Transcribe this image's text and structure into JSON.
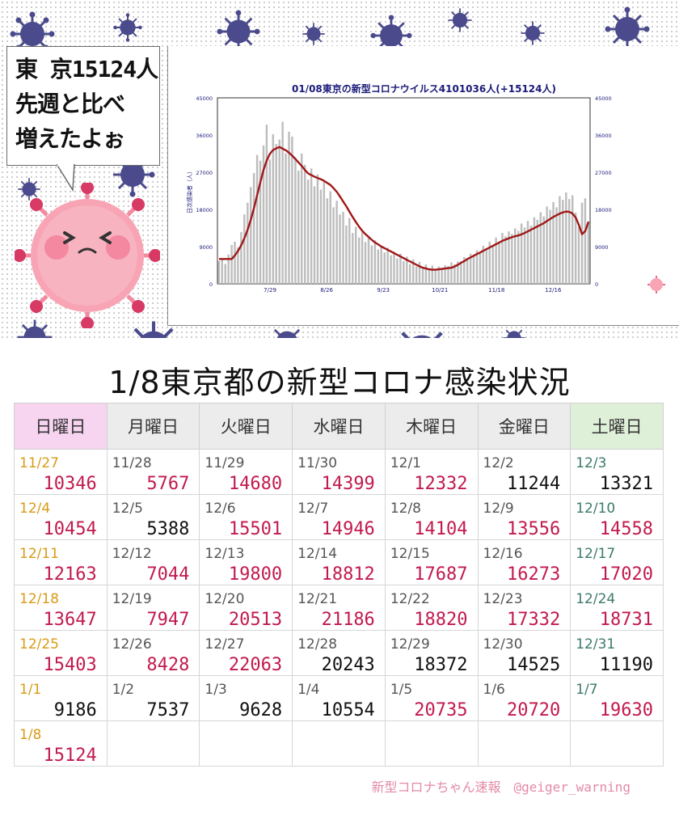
{
  "bubble": {
    "line1": "東 京15124人",
    "line2": "先週と比べ",
    "line3": "増えたよぉ"
  },
  "chart_data": {
    "type": "bar",
    "title": "01/08東京の新型コロナウイルス4101036人(+15124人)",
    "ylabel": "日次感染者（人）",
    "ylim": [
      0,
      45000
    ],
    "yticks": [
      "0",
      "9000",
      "18000",
      "27000",
      "36000",
      "45000"
    ],
    "xticks": [
      "7/29",
      "8/26",
      "9/23",
      "10/21",
      "11/18",
      "12/16"
    ],
    "series": [
      {
        "values": [
          5500,
          6200,
          4800,
          7100,
          9400,
          10200,
          8800,
          12500,
          16800,
          19600,
          23400,
          26800,
          31200,
          29800,
          33500,
          38500,
          30100,
          36200,
          33800,
          34900,
          39200,
          31600,
          36800,
          35600,
          30200,
          27400,
          31500,
          28800,
          25200,
          27900,
          23600,
          26500,
          22800,
          24900,
          20700,
          22400,
          18500,
          20100,
          16800,
          17400,
          14100,
          15900,
          12300,
          13800,
          11200,
          12600,
          10100,
          11400,
          9300,
          10500,
          8300,
          9200,
          7600,
          8700,
          6900,
          7800,
          6100,
          7300,
          5500,
          6600,
          4800,
          5900,
          4200,
          5300,
          3700,
          4700,
          3500,
          4400,
          3300,
          4200,
          3900,
          4500,
          4300,
          5200,
          4700,
          5400,
          5400,
          6500,
          5900,
          7300,
          6700,
          8100,
          7400,
          9200,
          8600,
          10200,
          9400,
          11200,
          10200,
          12300,
          11500,
          12700,
          12100,
          13400,
          12800,
          14600,
          13600,
          15200,
          14100,
          16100,
          15500,
          17300,
          16300,
          18700,
          17900,
          19800,
          18500,
          21200,
          20300,
          22100,
          20500,
          21400,
          17200,
          13800,
          19600,
          20700,
          15124
        ]
      },
      {
        "name": "7-day average",
        "values": [
          6000,
          6000,
          6000,
          6000,
          6000,
          6900,
          8000,
          9400,
          11100,
          13100,
          15600,
          18400,
          21600,
          24700,
          27600,
          29900,
          31500,
          32400,
          32800,
          33100,
          32700,
          32300,
          31700,
          31000,
          30200,
          29300,
          28500,
          27500,
          26700,
          26300,
          25900,
          25600,
          25300,
          24900,
          24400,
          23900,
          23100,
          22200,
          21100,
          19900,
          18700,
          17400,
          16100,
          14900,
          13800,
          12800,
          12000,
          11300,
          10600,
          10000,
          9500,
          9000,
          8600,
          8200,
          7800,
          7400,
          7000,
          6600,
          6200,
          5800,
          5400,
          5000,
          4600,
          4200,
          3900,
          3700,
          3500,
          3400,
          3400,
          3500,
          3600,
          3700,
          3800,
          3900,
          4200,
          4600,
          5100,
          5500,
          6000,
          6400,
          6800,
          7200,
          7600,
          8000,
          8400,
          8800,
          9200,
          9600,
          10000,
          10400,
          10700,
          11000,
          11300,
          11500,
          11700,
          12000,
          12300,
          12700,
          13100,
          13500,
          13900,
          14300,
          14700,
          15200,
          15700,
          16200,
          16600,
          17000,
          17300,
          17500,
          17400,
          17000,
          16000,
          14200,
          12000,
          12800,
          15000
        ]
      }
    ]
  },
  "table": {
    "title": "1/8東京都の新型コロナ感染状況",
    "headers": [
      "日曜日",
      "月曜日",
      "火曜日",
      "水曜日",
      "木曜日",
      "金曜日",
      "土曜日"
    ],
    "rows": [
      [
        {
          "date": "11/27",
          "value": "10346",
          "trend": "up"
        },
        {
          "date": "11/28",
          "value": "5767",
          "trend": "up"
        },
        {
          "date": "11/29",
          "value": "14680",
          "trend": "up"
        },
        {
          "date": "11/30",
          "value": "14399",
          "trend": "up"
        },
        {
          "date": "12/1",
          "value": "12332",
          "trend": "up"
        },
        {
          "date": "12/2",
          "value": "11244",
          "trend": "down"
        },
        {
          "date": "12/3",
          "value": "13321",
          "trend": "down"
        }
      ],
      [
        {
          "date": "12/4",
          "value": "10454",
          "trend": "up"
        },
        {
          "date": "12/5",
          "value": "5388",
          "trend": "down"
        },
        {
          "date": "12/6",
          "value": "15501",
          "trend": "up"
        },
        {
          "date": "12/7",
          "value": "14946",
          "trend": "up"
        },
        {
          "date": "12/8",
          "value": "14104",
          "trend": "up"
        },
        {
          "date": "12/9",
          "value": "13556",
          "trend": "up"
        },
        {
          "date": "12/10",
          "value": "14558",
          "trend": "up"
        }
      ],
      [
        {
          "date": "12/11",
          "value": "12163",
          "trend": "up"
        },
        {
          "date": "12/12",
          "value": "7044",
          "trend": "up"
        },
        {
          "date": "12/13",
          "value": "19800",
          "trend": "up"
        },
        {
          "date": "12/14",
          "value": "18812",
          "trend": "up"
        },
        {
          "date": "12/15",
          "value": "17687",
          "trend": "up"
        },
        {
          "date": "12/16",
          "value": "16273",
          "trend": "up"
        },
        {
          "date": "12/17",
          "value": "17020",
          "trend": "up"
        }
      ],
      [
        {
          "date": "12/18",
          "value": "13647",
          "trend": "up"
        },
        {
          "date": "12/19",
          "value": "7947",
          "trend": "up"
        },
        {
          "date": "12/20",
          "value": "20513",
          "trend": "up"
        },
        {
          "date": "12/21",
          "value": "21186",
          "trend": "up"
        },
        {
          "date": "12/22",
          "value": "18820",
          "trend": "up"
        },
        {
          "date": "12/23",
          "value": "17332",
          "trend": "up"
        },
        {
          "date": "12/24",
          "value": "18731",
          "trend": "up"
        }
      ],
      [
        {
          "date": "12/25",
          "value": "15403",
          "trend": "up"
        },
        {
          "date": "12/26",
          "value": "8428",
          "trend": "up"
        },
        {
          "date": "12/27",
          "value": "22063",
          "trend": "up"
        },
        {
          "date": "12/28",
          "value": "20243",
          "trend": "down"
        },
        {
          "date": "12/29",
          "value": "18372",
          "trend": "down"
        },
        {
          "date": "12/30",
          "value": "14525",
          "trend": "down"
        },
        {
          "date": "12/31",
          "value": "11190",
          "trend": "down"
        }
      ],
      [
        {
          "date": "1/1",
          "value": "9186",
          "trend": "down"
        },
        {
          "date": "1/2",
          "value": "7537",
          "trend": "down"
        },
        {
          "date": "1/3",
          "value": "9628",
          "trend": "down"
        },
        {
          "date": "1/4",
          "value": "10554",
          "trend": "down"
        },
        {
          "date": "1/5",
          "value": "20735",
          "trend": "up"
        },
        {
          "date": "1/6",
          "value": "20720",
          "trend": "up"
        },
        {
          "date": "1/7",
          "value": "19630",
          "trend": "up"
        }
      ],
      [
        {
          "date": "1/8",
          "value": "15124",
          "trend": "up"
        },
        {
          "date": "",
          "value": "",
          "trend": ""
        },
        {
          "date": "",
          "value": "",
          "trend": ""
        },
        {
          "date": "",
          "value": "",
          "trend": ""
        },
        {
          "date": "",
          "value": "",
          "trend": ""
        },
        {
          "date": "",
          "value": "",
          "trend": ""
        },
        {
          "date": "",
          "value": "",
          "trend": ""
        }
      ]
    ]
  },
  "footer": "新型コロナちゃん速報　@geiger_warning",
  "colors": {
    "virus": "#4a4a8c",
    "mascot": "#f06a82",
    "avg_line": "#a01818",
    "bars": "#bdbdbd",
    "up_value": "#c21a4e"
  },
  "icons": {
    "decor": "virus-icon",
    "mascot": "coronavirus-mascot-icon"
  }
}
